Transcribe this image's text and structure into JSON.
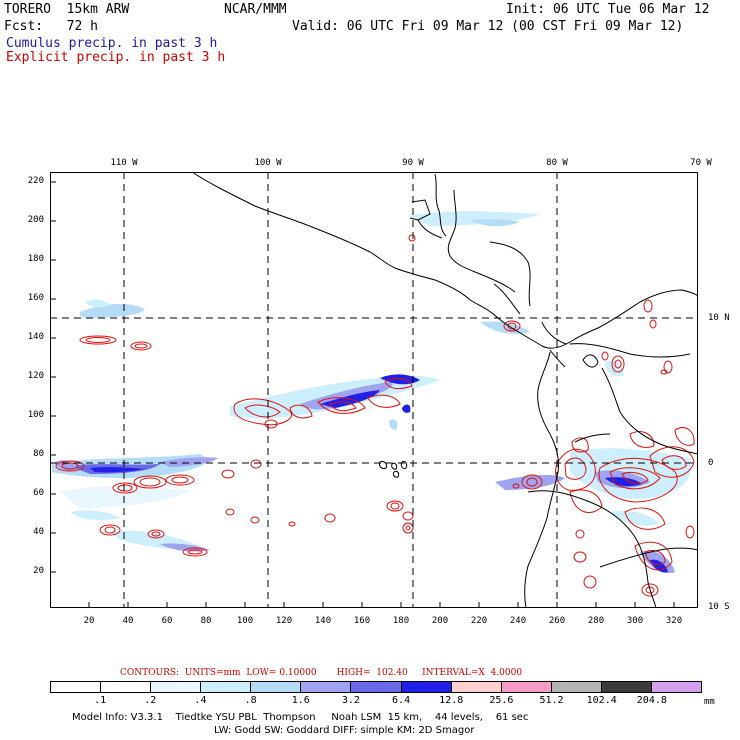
{
  "header": {
    "model": "TORERO  15km ARW",
    "center": "NCAR/MMM",
    "init": "Init: 06 UTC Tue 06 Mar 12",
    "fcst": "Fcst:   72 h",
    "valid": "Valid: 06 UTC Fri 09 Mar 12 (00 CST Fri 09 Mar 12)",
    "legend_cumulus": "Cumulus precip. in past 3 h",
    "legend_explicit": "Explicit precip. in past 3 h"
  },
  "map": {
    "top_lon_labels": [
      "110 W",
      "100 W",
      "90 W",
      "80 W",
      "70 W"
    ],
    "right_lat_labels": [
      "10 N",
      "0",
      "10 S"
    ],
    "y_ticks": [
      "220",
      "200",
      "180",
      "160",
      "140",
      "120",
      "100",
      "80",
      "60",
      "40",
      "20"
    ],
    "x_ticks": [
      "20",
      "40",
      "60",
      "80",
      "100",
      "120",
      "140",
      "160",
      "180",
      "200",
      "220",
      "240",
      "260",
      "280",
      "300",
      "320"
    ]
  },
  "contour_info": "CONTOURS:  UNITS=mm  LOW= 0.10000       HIGH=  102.40     INTERVAL=X  4.0000",
  "colorbar": {
    "labels": [
      ".1",
      ".2",
      ".4",
      ".8",
      "1.6",
      "3.2",
      "6.4",
      "12.8",
      "25.6",
      "51.2",
      "102.4",
      "204.8"
    ],
    "unit": "mm",
    "colors": [
      "#ffffff",
      "#ffffff",
      "#e8f6fd",
      "#cdeefc",
      "#b4dcf6",
      "#9ea4ef",
      "#6a6ae8",
      "#2020e6",
      "#ffd0d0",
      "#f59ac9",
      "#b4b4b4",
      "#3c3c3c",
      "#d4a0ec"
    ]
  },
  "footer": {
    "line1": "Model Info: V3.3.1    Tiedtke YSU PBL  Thompson     Noah LSM  15 km,    44 levels,    61 sec",
    "line2": "LW: Godd SW: Goddard DIFF: simple KM: 2D Smagor"
  }
}
